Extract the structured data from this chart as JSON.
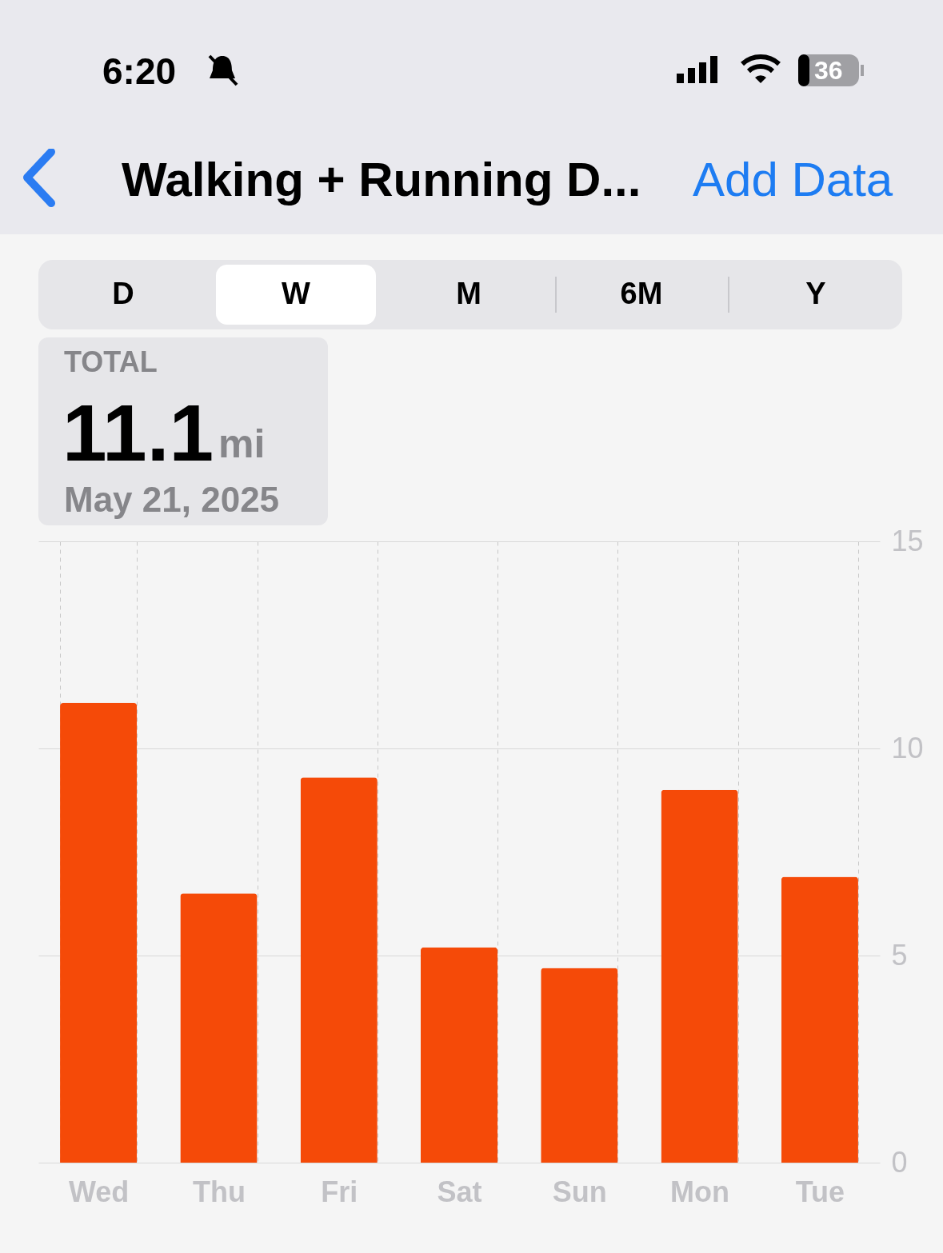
{
  "chart_data": {
    "type": "bar",
    "title": "Walking + Running D...",
    "categories": [
      "Wed",
      "Thu",
      "Fri",
      "Sat",
      "Sun",
      "Mon",
      "Tue"
    ],
    "series": [
      {
        "color": "#f54a08",
        "values": [
          11.1,
          6.5,
          9.3,
          5.2,
          4.7,
          9.0,
          6.9
        ]
      }
    ],
    "ylim": [
      0,
      15
    ],
    "yticks": [
      0,
      5,
      10,
      15
    ],
    "grid": true,
    "annotations": [
      "6:20",
      "36",
      "Add Data",
      "D",
      "W",
      "M",
      "6M",
      "Y",
      "TOTAL",
      "11.1",
      "mi",
      "May 21, 2025"
    ]
  }
}
